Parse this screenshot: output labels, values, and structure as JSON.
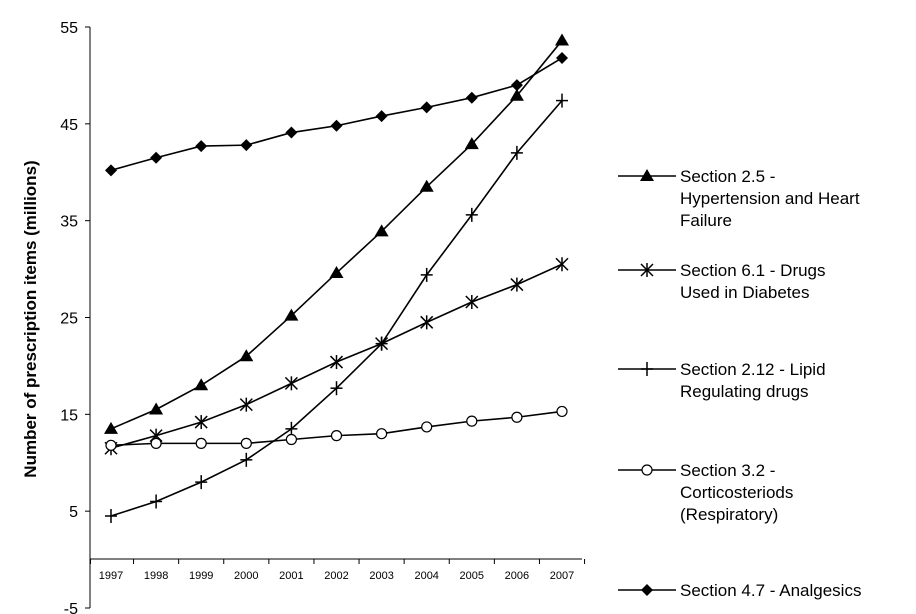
{
  "chart_data": {
    "type": "line",
    "title": "",
    "xlabel": "",
    "ylabel": "Number of prescription items (millions)",
    "categories": [
      "1997",
      "1998",
      "1999",
      "2000",
      "2001",
      "2002",
      "2003",
      "2004",
      "2005",
      "2006",
      "2007"
    ],
    "y_ticks": [
      "-5",
      "5",
      "15",
      "25",
      "35",
      "45",
      "55"
    ],
    "ylim": [
      -5,
      55
    ],
    "grid": false,
    "legend_position": "right",
    "series": [
      {
        "name": "Section 2.5 - Hypertension and Heart Failure",
        "legend_lines": [
          "Section 2.5 -",
          "Hypertension and Heart",
          "Failure"
        ],
        "marker": "triangle",
        "values": [
          13.5,
          15.5,
          18.0,
          21.0,
          25.2,
          29.6,
          33.9,
          38.5,
          42.9,
          47.9,
          53.6
        ]
      },
      {
        "name": "Section 6.1 - Drugs Used in Diabetes",
        "legend_lines": [
          "Section 6.1 - Drugs",
          "Used in Diabetes"
        ],
        "marker": "asterisk",
        "values": [
          11.5,
          12.8,
          14.2,
          16.0,
          18.2,
          20.4,
          22.3,
          24.5,
          26.6,
          28.4,
          30.5
        ]
      },
      {
        "name": "Section 2.12 - Lipid Regulating drugs",
        "legend_lines": [
          "Section 2.12 - Lipid",
          "Regulating drugs"
        ],
        "marker": "plus",
        "values": [
          4.5,
          6.0,
          8.0,
          10.3,
          13.5,
          17.7,
          22.3,
          29.4,
          35.6,
          42.0,
          47.4
        ]
      },
      {
        "name": "Section 3.2 - Corticosteriods (Respiratory)",
        "legend_lines": [
          "Section 3.2 -",
          "Corticosteriods",
          "(Respiratory)"
        ],
        "marker": "circle",
        "values": [
          11.8,
          12.0,
          12.0,
          12.0,
          12.4,
          12.8,
          13.0,
          13.7,
          14.3,
          14.7,
          15.3
        ]
      },
      {
        "name": "Section 4.7 - Analgesics",
        "legend_lines": [
          "Section 4.7 - Analgesics"
        ],
        "marker": "diamond",
        "values": [
          40.2,
          41.5,
          42.7,
          42.8,
          44.1,
          44.8,
          45.8,
          46.7,
          47.7,
          49.0,
          51.8
        ]
      }
    ]
  }
}
